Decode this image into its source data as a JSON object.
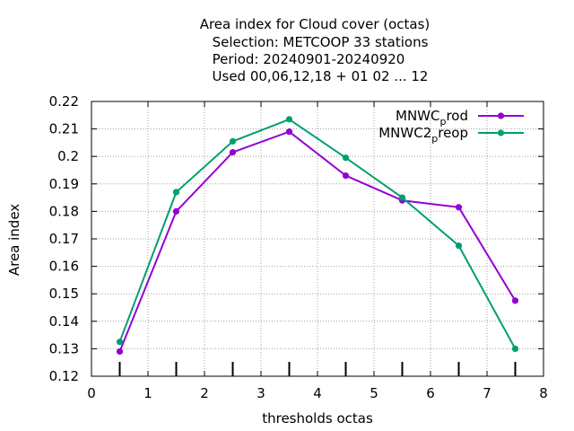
{
  "chart_data": {
    "type": "line",
    "title_lines": [
      "Area index  for Cloud cover (octas)",
      "Selection: METCOOP     33 stations",
      "Period: 20240901-20240920",
      "Used  00,06,12,18 + 01 02 ... 12"
    ],
    "xlabel": "thresholds octas",
    "ylabel": "Area index",
    "xlim": [
      0,
      8
    ],
    "ylim": [
      0.12,
      0.22
    ],
    "x_ticks": [
      "0",
      "1",
      "2",
      "3",
      "4",
      "5",
      "6",
      "7",
      "8"
    ],
    "y_ticks": [
      "0.12",
      "0.13",
      "0.14",
      "0.15",
      "0.16",
      "0.17",
      "0.18",
      "0.19",
      "0.2",
      "0.21",
      "0.22"
    ],
    "grid": true,
    "legend_position": "top-right",
    "threshold_marks": [
      0.5,
      1.5,
      2.5,
      3.5,
      4.5,
      5.5,
      6.5,
      7.5
    ],
    "x": [
      0.5,
      1.5,
      2.5,
      3.5,
      4.5,
      5.5,
      6.5,
      7.5
    ],
    "series": [
      {
        "label_main": "MNWC",
        "label_sub": "p",
        "label_tail": "rod",
        "color": "#9400d3",
        "values": [
          0.129,
          0.18,
          0.2015,
          0.209,
          0.193,
          0.184,
          0.1815,
          0.1475
        ]
      },
      {
        "label_main": "MNWC2",
        "label_sub": "p",
        "label_tail": "reop",
        "color": "#009e73",
        "values": [
          0.1325,
          0.187,
          0.2055,
          0.2135,
          0.1995,
          0.185,
          0.1675,
          0.13
        ]
      }
    ]
  }
}
